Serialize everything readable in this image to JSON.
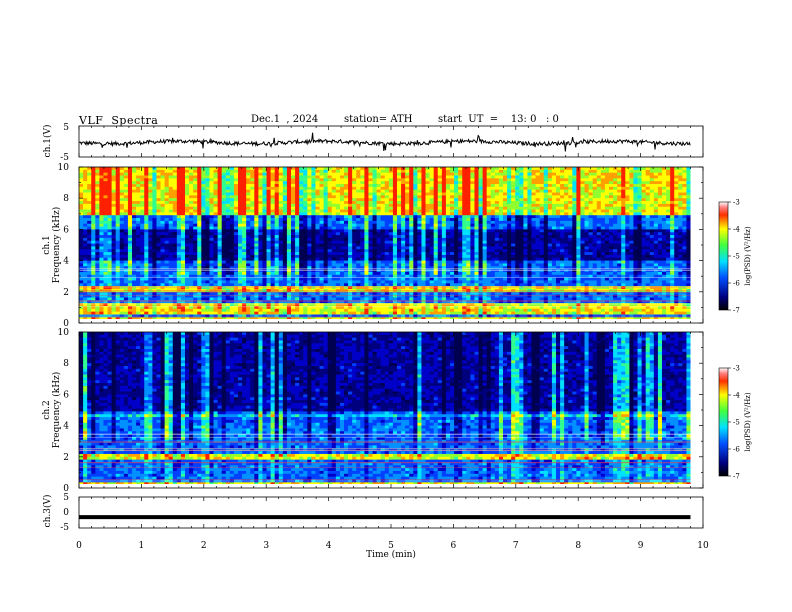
{
  "header": {
    "title": "VLF  Spectra",
    "date": "Dec.1  , 2024",
    "station": "station= ATH",
    "start": "start  UT  =    13: 0   : 0"
  },
  "colors": {
    "axis": "#000000",
    "trace": "#000000",
    "spectrogram_low": "#00007f",
    "spectrogram_high": "#ff0000"
  },
  "chart_data": [
    {
      "type": "line",
      "panel": "ch1-waveform",
      "ylabel": "ch.1(V)",
      "ylim": [
        -5,
        5
      ],
      "yticks": [
        "5",
        "-5"
      ],
      "xlim": [
        0,
        10
      ],
      "approx_level": -0.3,
      "fluctuation": "noisy, roughly ±1 V with spikes"
    },
    {
      "type": "heatmap",
      "panel": "ch1-spectrogram",
      "ylabel": "ch.1\nFrequency  (kHz)",
      "ylim": [
        0,
        10
      ],
      "yticks": [
        "0",
        "2",
        "4",
        "6",
        "8",
        "10"
      ],
      "xlim": [
        0,
        10
      ],
      "data_end_min": 9.8,
      "bands_khz": [
        {
          "from": 0.0,
          "to": 0.3,
          "level": "high"
        },
        {
          "from": 0.6,
          "to": 1.2,
          "level": "high"
        },
        {
          "from": 2.0,
          "to": 2.3,
          "level": "high"
        },
        {
          "from": 4.0,
          "to": 6.0,
          "level": "low"
        },
        {
          "from": 7.0,
          "to": 10.0,
          "level": "high"
        }
      ]
    },
    {
      "type": "heatmap",
      "panel": "ch2-spectrogram",
      "ylabel": "ch.2\nFrequency  (kHz)",
      "ylim": [
        0,
        10
      ],
      "yticks": [
        "0",
        "2",
        "4",
        "6",
        "8",
        "10"
      ],
      "xlim": [
        0,
        10
      ],
      "data_end_min": 9.8,
      "bands_khz": [
        {
          "from": 0.0,
          "to": 0.3,
          "level": "high"
        },
        {
          "from": 1.8,
          "to": 2.2,
          "level": "high"
        },
        {
          "from": 4.5,
          "to": 4.8,
          "level": "medium"
        },
        {
          "from": 5.0,
          "to": 10.0,
          "level": "low"
        }
      ]
    },
    {
      "type": "line",
      "panel": "ch3-waveform",
      "ylabel": "ch.3(V)",
      "ylim": [
        -5,
        5
      ],
      "yticks": [
        "5",
        "0",
        "-5"
      ],
      "xlim": [
        0,
        10
      ],
      "approx_level": -1.5,
      "fluctuation": "flat thick trace"
    }
  ],
  "xaxis": {
    "label": "Time  (min)",
    "ticks": [
      "0",
      "1",
      "2",
      "3",
      "4",
      "5",
      "6",
      "7",
      "8",
      "9",
      "10"
    ]
  },
  "colorbar": {
    "label": "log(PSD) (V²/Hz)",
    "ticks": [
      "-3",
      "-4",
      "-5",
      "-6",
      "-7"
    ]
  }
}
